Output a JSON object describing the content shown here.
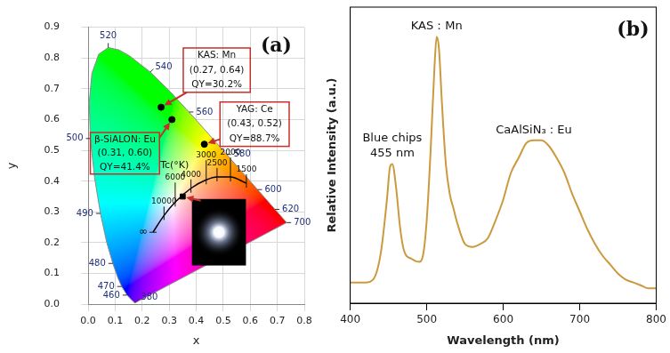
{
  "chart_data": [
    {
      "type": "scatter",
      "panel": "(a)",
      "xlabel": "x",
      "ylabel": "y",
      "xlim": [
        0,
        0.8
      ],
      "ylim": [
        0,
        0.9
      ],
      "xticks": [
        {
          "value": 0,
          "label": "0.0"
        },
        0.1,
        0.2,
        0.3,
        0.4,
        0.5,
        0.6,
        0.7,
        0.8
      ],
      "yticks": [
        {
          "value": 0,
          "label": "0.0"
        },
        0.1,
        0.2,
        0.3,
        0.4,
        0.5,
        0.6,
        0.7,
        0.8,
        0.9
      ],
      "grid": true,
      "spectral_locus": {
        "wavelength": [
          380,
          400,
          420,
          440,
          450,
          460,
          470,
          475,
          480,
          485,
          490,
          495,
          500,
          505,
          510,
          515,
          520,
          525,
          530,
          540,
          550,
          560,
          570,
          580,
          590,
          600,
          610,
          620,
          640,
          660,
          700
        ],
        "x": [
          0.1741,
          0.1733,
          0.1714,
          0.1644,
          0.1566,
          0.144,
          0.1241,
          0.1096,
          0.0913,
          0.0687,
          0.0454,
          0.0235,
          0.0082,
          0.0039,
          0.0139,
          0.0389,
          0.0743,
          0.1142,
          0.1547,
          0.2296,
          0.3016,
          0.3731,
          0.4441,
          0.5125,
          0.5752,
          0.627,
          0.6658,
          0.6915,
          0.719,
          0.73,
          0.7347
        ],
        "y": [
          0.005,
          0.0048,
          0.0051,
          0.0109,
          0.0177,
          0.0297,
          0.0578,
          0.0868,
          0.1327,
          0.2007,
          0.295,
          0.4127,
          0.5384,
          0.6548,
          0.7502,
          0.812,
          0.8338,
          0.8262,
          0.8059,
          0.7543,
          0.6923,
          0.6245,
          0.5547,
          0.4866,
          0.4242,
          0.3725,
          0.334,
          0.3083,
          0.2809,
          0.27,
          0.2653
        ],
        "labeled": [
          380,
          460,
          470,
          480,
          490,
          500,
          520,
          540,
          560,
          580,
          600,
          620,
          700
        ]
      },
      "planckian_locus": {
        "title": "Tc(°K)",
        "T": [
          "∞",
          10000,
          6000,
          4000,
          3000,
          2500,
          2000,
          1500
        ],
        "x": [
          0.2399,
          0.2807,
          0.3221,
          0.3805,
          0.4369,
          0.477,
          0.5267,
          0.5857
        ],
        "y": [
          0.234,
          0.2883,
          0.3318,
          0.3768,
          0.4041,
          0.4137,
          0.4133,
          0.3931
        ]
      },
      "points": [
        {
          "text": [
            "KAS: Mn",
            "(0.27, 0.64)",
            "QY=30.2%"
          ],
          "x": 0.27,
          "y": 0.64
        },
        {
          "text": [
            "β-SiALON: Eu",
            "(0.31, 0.60)",
            "QY=41.4%"
          ],
          "x": 0.31,
          "y": 0.6
        },
        {
          "text": [
            "YAG: Ce",
            "(0.43, 0.52)",
            "QY=88.7%"
          ],
          "x": 0.43,
          "y": 0.52
        }
      ],
      "white_led": {
        "x": 0.35,
        "y": 0.35
      }
    },
    {
      "type": "line",
      "panel": "(b)",
      "xlabel": "Wavelength (nm)",
      "ylabel": "Relative Intensity (a.u.)",
      "xlim": [
        400,
        800
      ],
      "xticks": [
        400,
        500,
        600,
        700,
        800
      ],
      "ylim": [
        0,
        1
      ],
      "tick_labels": "x",
      "grid": false,
      "color": "#cc9a3e",
      "x": [
        400,
        420,
        430,
        440,
        448,
        452,
        455,
        460,
        465,
        470,
        480,
        490,
        495,
        500,
        505,
        510,
        513,
        516,
        520,
        525,
        530,
        535,
        540,
        550,
        560,
        570,
        580,
        590,
        600,
        610,
        620,
        630,
        640,
        650,
        660,
        670,
        680,
        690,
        700,
        710,
        720,
        730,
        740,
        750,
        760,
        770,
        780,
        790,
        800
      ],
      "values": [
        0.07,
        0.07,
        0.08,
        0.17,
        0.35,
        0.46,
        0.47,
        0.39,
        0.26,
        0.18,
        0.15,
        0.14,
        0.16,
        0.28,
        0.51,
        0.79,
        0.9,
        0.86,
        0.67,
        0.47,
        0.37,
        0.32,
        0.27,
        0.2,
        0.19,
        0.2,
        0.22,
        0.28,
        0.35,
        0.44,
        0.49,
        0.54,
        0.55,
        0.55,
        0.53,
        0.49,
        0.44,
        0.37,
        0.31,
        0.25,
        0.2,
        0.16,
        0.13,
        0.1,
        0.08,
        0.07,
        0.06,
        0.05,
        0.05
      ],
      "annotations": [
        {
          "text": [
            "Blue chips",
            "455 nm"
          ],
          "x": 455
        },
        {
          "text": [
            "KAS：Mn"
          ],
          "x": 513
        },
        {
          "text": [
            "CaAlSiN₃ : Eu"
          ],
          "x": 640
        }
      ]
    }
  ]
}
